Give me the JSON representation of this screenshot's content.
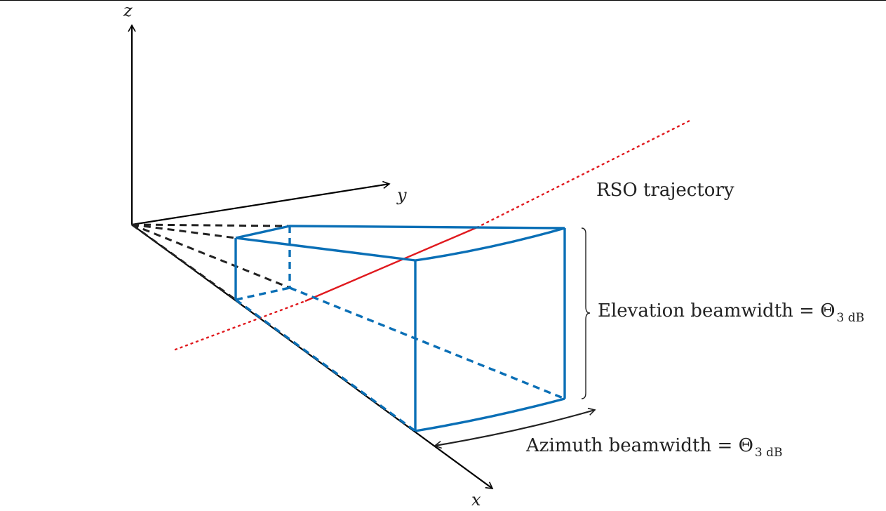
{
  "axes": {
    "x": "x",
    "y": "y",
    "z": "z"
  },
  "labels": {
    "trajectory": "RSO trajectory",
    "elevation_prefix": "Elevation beamwidth = ",
    "azimuth_prefix": "Azimuth beamwidth = ",
    "theta_symbol": "Θ",
    "theta_subscript": "3 dB"
  },
  "colors": {
    "beam": "#0a6fb6",
    "trajectory": "#e0191e",
    "axis": "#000000",
    "dashed_rays": "#222222"
  }
}
